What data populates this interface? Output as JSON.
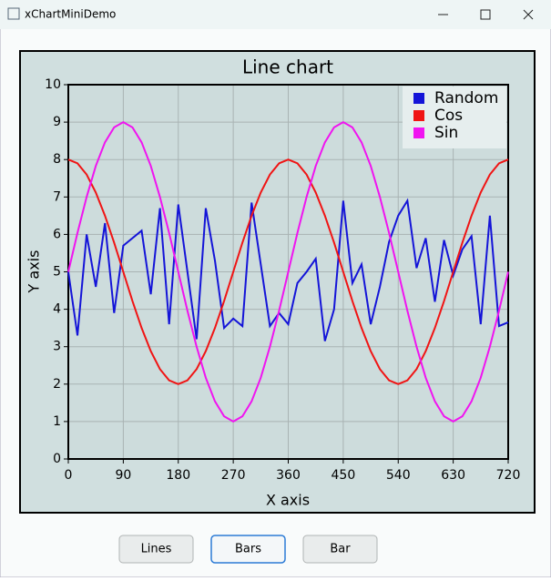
{
  "window": {
    "title": "xChartMiniDemo"
  },
  "chart_data": {
    "type": "line",
    "title": "Line chart",
    "x_label": "X axis",
    "y_label": "Y axis",
    "x": [
      0,
      15,
      30,
      45,
      60,
      75,
      90,
      105,
      120,
      135,
      150,
      165,
      180,
      195,
      210,
      225,
      240,
      255,
      270,
      285,
      300,
      315,
      330,
      345,
      360,
      375,
      390,
      405,
      420,
      435,
      450,
      465,
      480,
      495,
      510,
      525,
      540,
      555,
      570,
      585,
      600,
      615,
      630,
      645,
      660,
      675,
      690,
      705,
      720
    ],
    "series": [
      {
        "name": "Random",
        "color": "#1414d8",
        "values": [
          5.0,
          3.3,
          6.0,
          4.6,
          6.3,
          3.9,
          5.7,
          5.9,
          6.1,
          4.4,
          6.7,
          3.6,
          6.8,
          5.0,
          3.2,
          6.7,
          5.3,
          3.5,
          3.75,
          3.55,
          6.85,
          5.2,
          3.55,
          3.9,
          3.6,
          4.7,
          5.0,
          5.35,
          3.15,
          4.0,
          6.9,
          4.7,
          5.2,
          3.6,
          4.6,
          5.8,
          6.5,
          6.9,
          5.1,
          5.9,
          4.2,
          5.85,
          4.9,
          5.6,
          5.95,
          3.6,
          6.5,
          3.55,
          3.65
        ]
      },
      {
        "name": "Cos",
        "color": "#f01414",
        "values": [
          8,
          7.9,
          7.6,
          7.12,
          6.5,
          5.78,
          5,
          4.22,
          3.5,
          2.88,
          2.4,
          2.1,
          2,
          2.1,
          2.4,
          2.88,
          3.5,
          4.22,
          5,
          5.78,
          6.5,
          7.12,
          7.6,
          7.9,
          8,
          7.9,
          7.6,
          7.12,
          6.5,
          5.78,
          5,
          4.22,
          3.5,
          2.88,
          2.4,
          2.1,
          2,
          2.1,
          2.4,
          2.88,
          3.5,
          4.22,
          5,
          5.78,
          6.5,
          7.12,
          7.6,
          7.9,
          8
        ]
      },
      {
        "name": "Sin",
        "color": "#f014f0",
        "values": [
          5,
          6.04,
          7,
          7.83,
          8.46,
          8.86,
          9,
          8.86,
          8.46,
          7.83,
          7,
          6.04,
          5,
          3.96,
          3,
          2.17,
          1.54,
          1.14,
          1,
          1.14,
          1.54,
          2.17,
          3,
          3.96,
          5,
          6.04,
          7,
          7.83,
          8.46,
          8.86,
          9,
          8.86,
          8.46,
          7.83,
          7,
          6.04,
          5,
          3.96,
          3,
          2.17,
          1.54,
          1.14,
          1,
          1.14,
          1.54,
          2.17,
          3,
          3.96,
          5
        ]
      }
    ],
    "xlim": [
      0,
      720
    ],
    "xticks": [
      0,
      90,
      180,
      270,
      360,
      450,
      540,
      630,
      720
    ],
    "ylim": [
      0,
      10
    ],
    "yticks": [
      0,
      1,
      2,
      3,
      4,
      5,
      6,
      7,
      8,
      9,
      10
    ],
    "grid": true,
    "legend_position": "top-right"
  },
  "buttons": [
    "Lines",
    "Bars",
    "Bar"
  ]
}
